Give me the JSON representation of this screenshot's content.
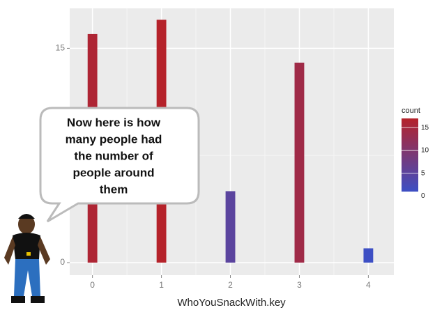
{
  "chart_data": {
    "type": "bar",
    "x": [
      0,
      1,
      2,
      3,
      4
    ],
    "values": [
      16,
      17,
      5,
      14,
      1
    ],
    "xlim": [
      -0.33,
      4.37
    ],
    "xticks": [
      0,
      1,
      2,
      3,
      4
    ],
    "ylim": [
      -0.88,
      17.8
    ],
    "yticks": [
      0,
      15
    ],
    "x_label": "WhoYouSnackWith.key",
    "grid": true,
    "legend_title": "count",
    "legend_ticks": [
      0,
      5,
      10,
      15
    ],
    "color_low": "#3d4fc4",
    "color_high": "#b5222a",
    "speech_bubble": [
      "Now here is how",
      "many people had",
      "the number of",
      "people around",
      "them"
    ]
  }
}
